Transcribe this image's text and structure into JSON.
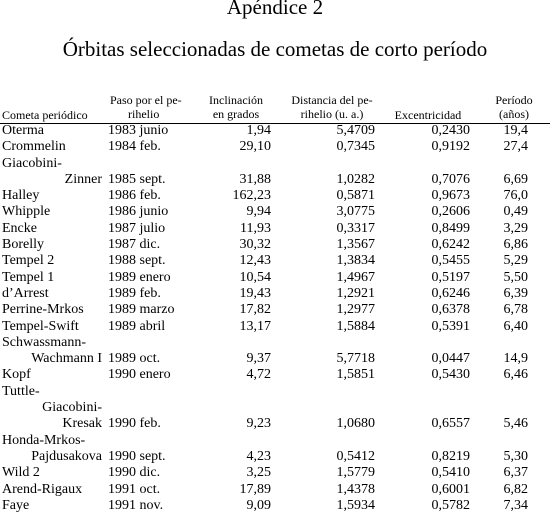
{
  "title": "Apéndice 2",
  "subtitle": "Órbitas seleccionadas de cometas de corto período",
  "table": {
    "headers": {
      "name": "Cometa periódico",
      "paso": [
        "Paso por el pe-",
        "rihelio"
      ],
      "inclinacion": [
        "Inclinación",
        "en grados"
      ],
      "distancia": [
        "Distancia del pe-",
        "rihelio (u. a.)"
      ],
      "excentricidad": "Excentricidad",
      "periodo": [
        "Período",
        "(años)"
      ]
    },
    "rows": [
      {
        "name": "Oterma",
        "date": "1983 junio",
        "incl": "1,94",
        "dist": "5,4709",
        "exc": "0,2430",
        "per": "19,4"
      },
      {
        "name": "Crommelin",
        "date": "1984 feb.",
        "incl": "29,10",
        "dist": "0,7345",
        "exc": "0,9192",
        "per": "27,4"
      },
      {
        "name": "Giacobini-",
        "cont": true
      },
      {
        "name": "Zinner",
        "indent": true,
        "date": "1985 sept.",
        "incl": "31,88",
        "dist": "1,0282",
        "exc": "0,7076",
        "per": "6,69"
      },
      {
        "name": "Halley",
        "date": "1986 feb.",
        "incl": "162,23",
        "dist": "0,5871",
        "exc": "0,9673",
        "per": "76,0"
      },
      {
        "name": "Whipple",
        "date": "1986 junio",
        "incl": "9,94",
        "dist": "3,0775",
        "exc": "0,2606",
        "per": "0,49"
      },
      {
        "name": "Encke",
        "date": "1987 julio",
        "incl": "11,93",
        "dist": "0,3317",
        "exc": "0,8499",
        "per": "3,29"
      },
      {
        "name": "Borelly",
        "date": "1987 dic.",
        "incl": "30,32",
        "dist": "1,3567",
        "exc": "0,6242",
        "per": "6,86"
      },
      {
        "name": "Tempel 2",
        "date": "1988 sept.",
        "incl": "12,43",
        "dist": "1,3834",
        "exc": "0,5455",
        "per": "5,29"
      },
      {
        "name": "Tempel 1",
        "date": "1989 enero",
        "incl": "10,54",
        "dist": "1,4967",
        "exc": "0,5197",
        "per": "5,50"
      },
      {
        "name": "d’Arrest",
        "date": "1989 feb.",
        "incl": "19,43",
        "dist": "1,2921",
        "exc": "0,6246",
        "per": "6,39"
      },
      {
        "name": "Perrine-Mrkos",
        "date": "1989 marzo",
        "incl": "17,82",
        "dist": "1,2977",
        "exc": "0,6378",
        "per": "6,78"
      },
      {
        "name": "Tempel-Swift",
        "date": "1989 abril",
        "incl": "13,17",
        "dist": "1,5884",
        "exc": "0,5391",
        "per": "6,40"
      },
      {
        "name": "Schwassmann-",
        "cont": true
      },
      {
        "name": "Wachmann I",
        "indent": true,
        "date": "1989 oct.",
        "incl": "9,37",
        "dist": "5,7718",
        "exc": "0,0447",
        "per": "14,9"
      },
      {
        "name": "Kopf",
        "date": "1990 enero",
        "incl": "4,72",
        "dist": "1,5851",
        "exc": "0,5430",
        "per": "6,46"
      },
      {
        "name": "Tuttle-",
        "cont": true
      },
      {
        "name": "Giacobini-",
        "cont": true,
        "indent": true
      },
      {
        "name": "Kresak",
        "indent": true,
        "date": "1990 feb.",
        "incl": "9,23",
        "dist": "1,0680",
        "exc": "0,6557",
        "per": "5,46"
      },
      {
        "name": "Honda-Mrkos-",
        "cont": true
      },
      {
        "name": "Pajdusakova",
        "indent": true,
        "date": "1990 sept.",
        "incl": "4,23",
        "dist": "0,5412",
        "exc": "0,8219",
        "per": "5,30"
      },
      {
        "name": "Wild 2",
        "date": "1990 dic.",
        "incl": "3,25",
        "dist": "1,5779",
        "exc": "0,5410",
        "per": "6,37"
      },
      {
        "name": "Arend-Rigaux",
        "date": "1991 oct.",
        "incl": "17,89",
        "dist": "1,4378",
        "exc": "0,6001",
        "per": "6,82"
      },
      {
        "name": "Faye",
        "date": "1991 nov.",
        "incl": "9,09",
        "dist": "1,5934",
        "exc": "0,5782",
        "per": "7,34"
      }
    ]
  }
}
